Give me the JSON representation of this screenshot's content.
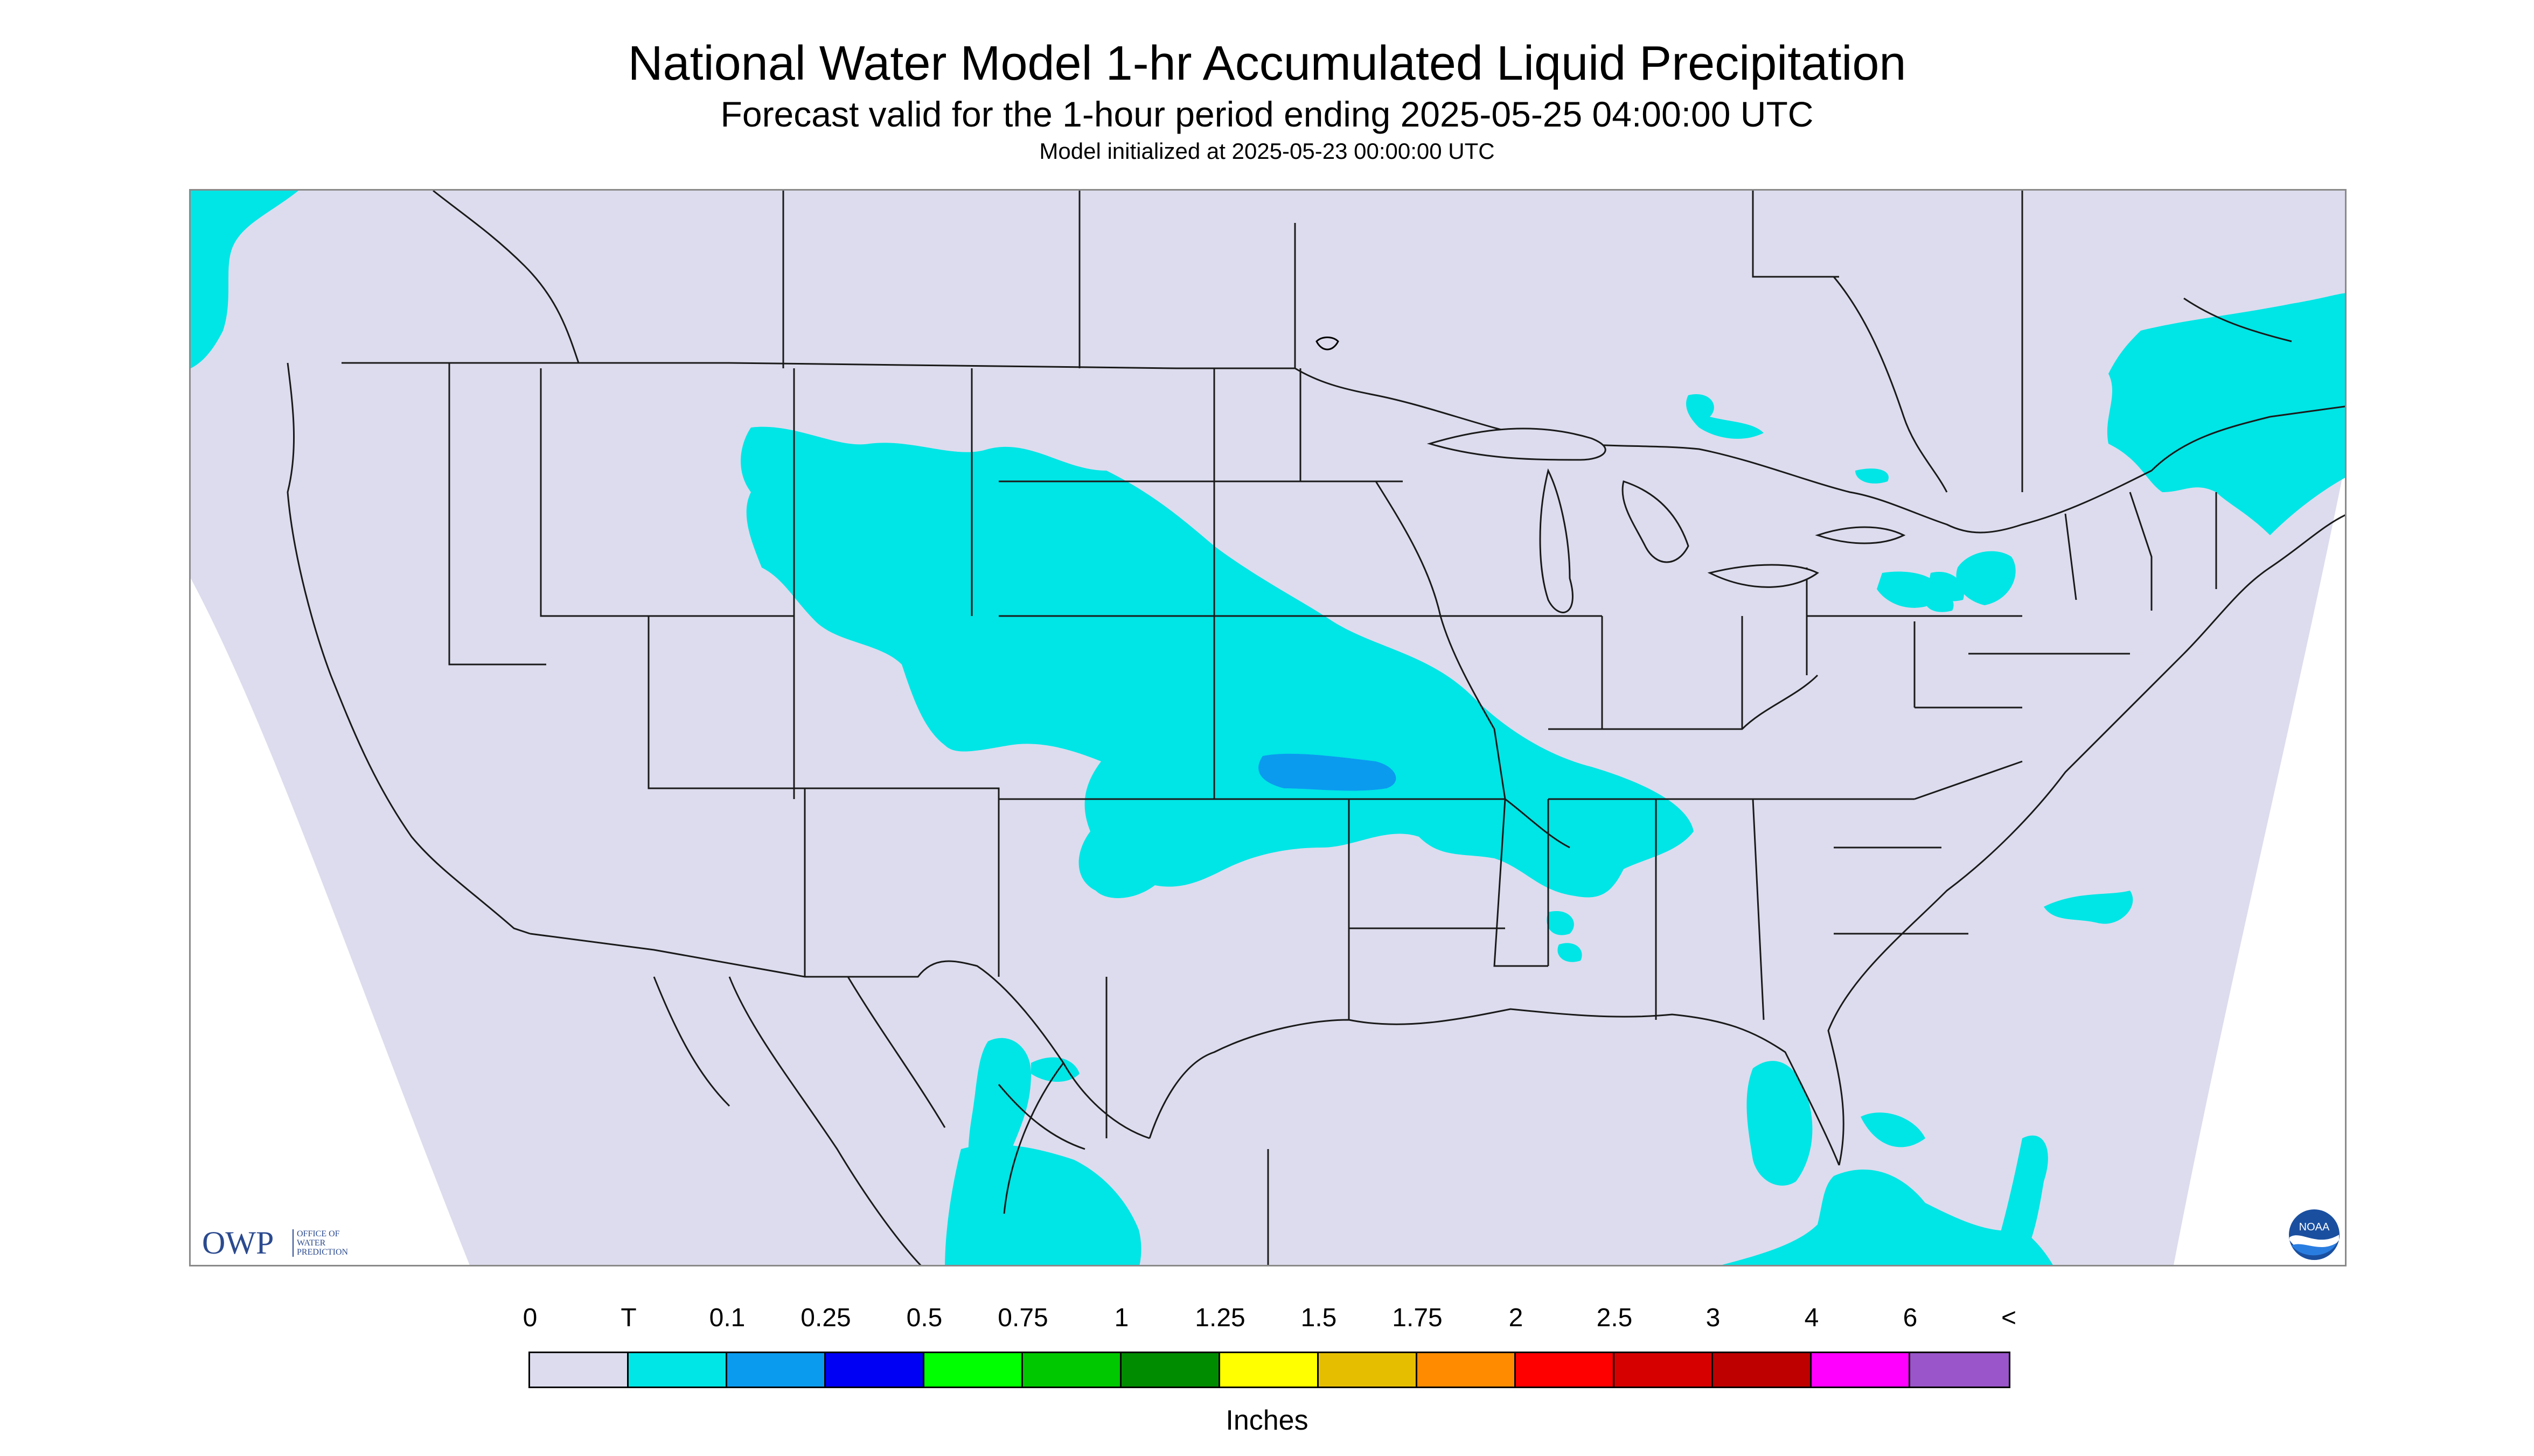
{
  "title": "National Water Model 1-hr Accumulated Liquid Precipitation",
  "subtitle": "Forecast valid for the 1-hour period ending 2025-05-25 04:00:00 UTC",
  "init_text": "Model initialized at 2025-05-23 00:00:00 UTC",
  "owp_logo": {
    "main": "OWP",
    "sub_lines": [
      "OFFICE OF",
      "WATER",
      "PREDICTION"
    ]
  },
  "noaa_logo": {
    "text": "NOAA"
  },
  "colors": {
    "domain_fill": "#dcdcee",
    "outside_domain": "#ffffff",
    "boundary_line": "#1a1a1a",
    "trace_class": "#00e5e5",
    "class_0_1": "#0a9bef"
  },
  "legend": {
    "units": "Inches",
    "labels": [
      "0",
      "T",
      "0.1",
      "0.25",
      "0.5",
      "0.75",
      "1",
      "1.25",
      "1.5",
      "1.75",
      "2",
      "2.5",
      "3",
      "4",
      "6",
      "<"
    ],
    "colors": [
      "#dcdcee",
      "#00e5e5",
      "#0a9bef",
      "#0000f4",
      "#00ff00",
      "#00c800",
      "#008c00",
      "#ffff00",
      "#e6be00",
      "#ff8c00",
      "#ff0000",
      "#d70000",
      "#be0000",
      "#ff00ff",
      "#9955c9"
    ]
  }
}
